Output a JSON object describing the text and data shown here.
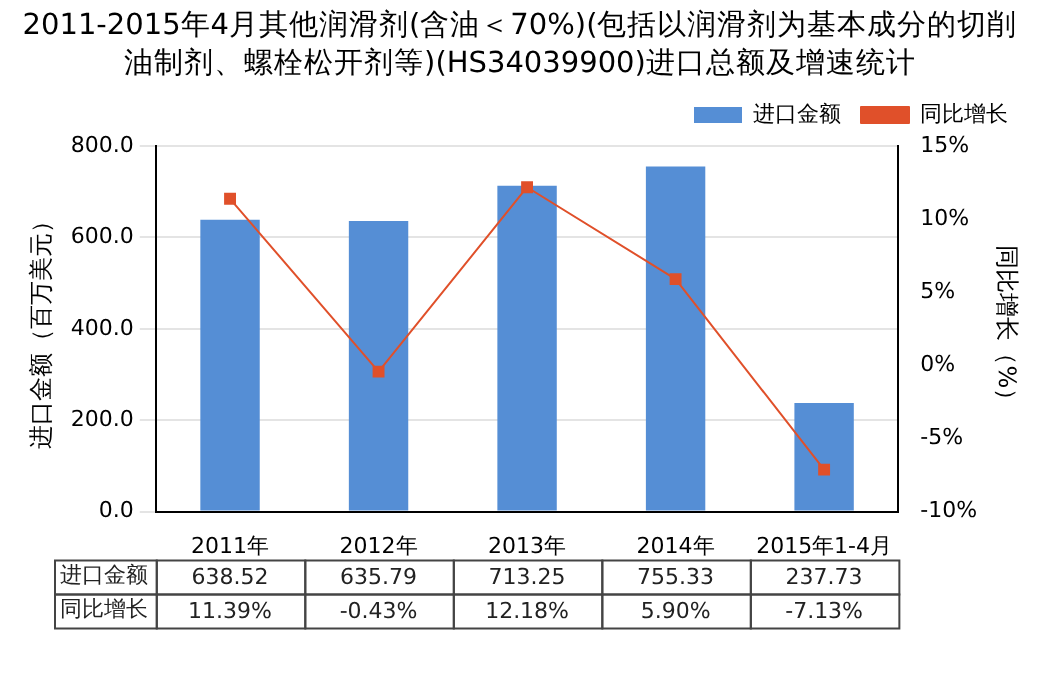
{
  "chart_data": {
    "type": "bar",
    "title": "2011-2015年4月其他润滑剂(含油＜70%)(包括以润滑剂为基本成分的切削油制剂、螺栓松开剂等)(HS34039900)进口总额及增速统计",
    "ylabel": "进口金额（百万美元）",
    "y2label": "同比增长（%）",
    "categories": [
      "2011年",
      "2012年",
      "2013年",
      "2014年",
      "2015年1-4月"
    ],
    "series": [
      {
        "name": "进口金额",
        "color": "#558ed5",
        "values": [
          638.52,
          635.79,
          713.25,
          755.33,
          237.73
        ],
        "value_labels": [
          "638.52",
          "635.79",
          "713.25",
          "755.33",
          "237.73"
        ]
      },
      {
        "name": "同比增长",
        "type": "line",
        "axis": "y2",
        "color": "#e0502a",
        "values": [
          11.39,
          -0.43,
          12.18,
          5.9,
          -7.13
        ],
        "value_labels": [
          "11.39%",
          "-0.43%",
          "12.18%",
          "5.90%",
          "-7.13%"
        ]
      }
    ],
    "ylim": [
      0,
      800
    ],
    "yticks": [
      {
        "value": 0,
        "label": "0.0"
      },
      {
        "value": 200,
        "label": "200.0"
      },
      {
        "value": 400,
        "label": "400.0"
      },
      {
        "value": 600,
        "label": "600.0"
      },
      {
        "value": 800,
        "label": "800.0"
      }
    ],
    "y2lim": [
      -10,
      15
    ],
    "y2ticks": [
      {
        "value": -10,
        "label": "-10%"
      },
      {
        "value": -5,
        "label": "-5%"
      },
      {
        "value": 0,
        "label": "0%"
      },
      {
        "value": 5,
        "label": "5%"
      },
      {
        "value": 10,
        "label": "10%"
      },
      {
        "value": 15,
        "label": "15%"
      }
    ],
    "grid": "y",
    "legend": "top right",
    "marker": "square"
  }
}
